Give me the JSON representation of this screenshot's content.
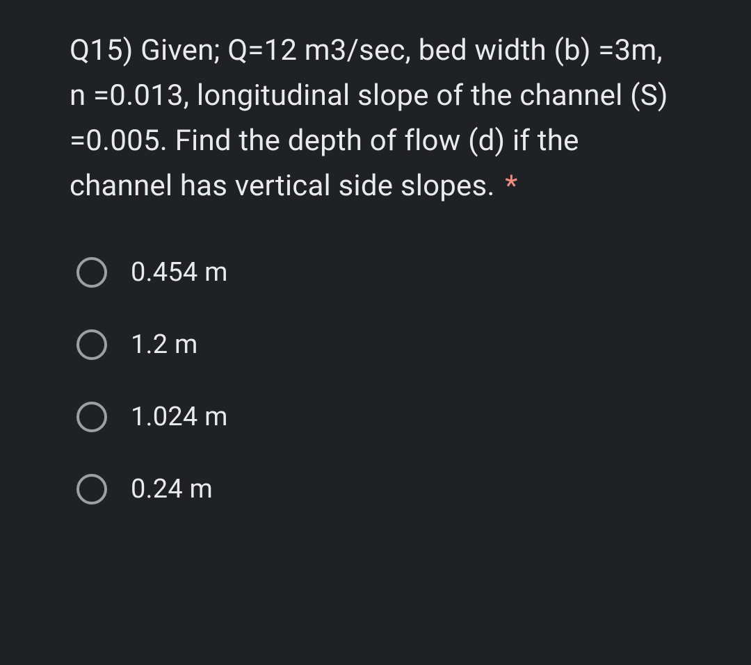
{
  "question": {
    "text": "Q15) Given; Q=12 m3/sec, bed width (b) =3m, n =0.013, longitudinal slope of the channel (S) =0.005. Find the depth of flow (d) if the channel has vertical side slopes.",
    "required_mark": "*"
  },
  "options": [
    {
      "label": "0.454 m"
    },
    {
      "label": "1.2 m"
    },
    {
      "label": "1.024 m"
    },
    {
      "label": "0.24 m"
    }
  ],
  "colors": {
    "background": "#202124",
    "text": "#e8eaed",
    "radio_border": "#9aa0a6",
    "required": "#f28b82"
  }
}
